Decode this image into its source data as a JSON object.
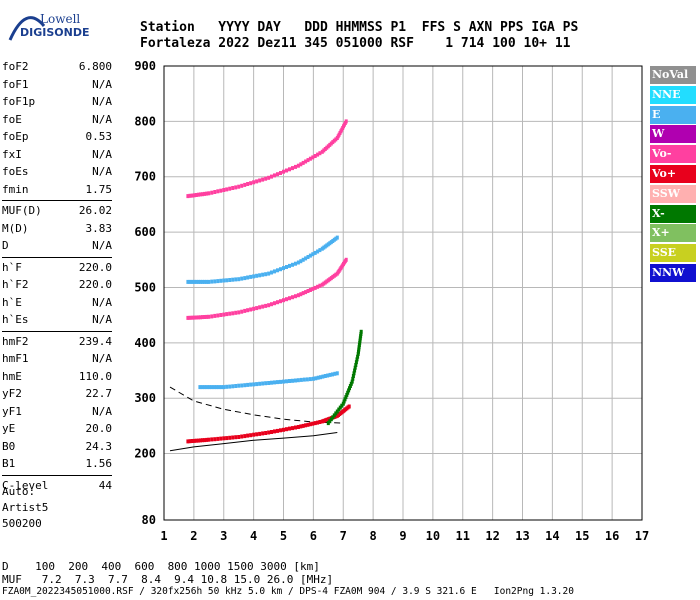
{
  "logo": {
    "line1": "Lowell",
    "line2": "DIGISONDE"
  },
  "header": {
    "row1": "Station   YYYY DAY   DDD HHMMSS P1  FFS S AXN PPS IGA PS",
    "row2": "Fortaleza 2022 Dez11 345 051000 RSF    1 714 100 10+ 11"
  },
  "params": {
    "group1": [
      {
        "label": "foF2",
        "value": "6.800"
      },
      {
        "label": "foF1",
        "value": "N/A"
      },
      {
        "label": "foF1p",
        "value": "N/A"
      },
      {
        "label": "foE",
        "value": "N/A"
      },
      {
        "label": "foEp",
        "value": "0.53"
      },
      {
        "label": "fxI",
        "value": "N/A"
      },
      {
        "label": "foEs",
        "value": "N/A"
      },
      {
        "label": "fmin",
        "value": "1.75"
      }
    ],
    "group2": [
      {
        "label": "MUF(D)",
        "value": "26.02"
      },
      {
        "label": "M(D)",
        "value": "3.83"
      },
      {
        "label": "D",
        "value": "N/A"
      }
    ],
    "group3": [
      {
        "label": "h`F",
        "value": "220.0"
      },
      {
        "label": "h`F2",
        "value": "220.0"
      },
      {
        "label": "h`E",
        "value": "N/A"
      },
      {
        "label": "h`Es",
        "value": "N/A"
      }
    ],
    "group4": [
      {
        "label": "hmF2",
        "value": "239.4"
      },
      {
        "label": "hmF1",
        "value": "N/A"
      },
      {
        "label": "hmE",
        "value": "110.0"
      },
      {
        "label": "yF2",
        "value": "22.7"
      },
      {
        "label": "yF1",
        "value": "N/A"
      },
      {
        "label": "yE",
        "value": "20.0"
      },
      {
        "label": "B0",
        "value": "24.3"
      },
      {
        "label": "B1",
        "value": "1.56"
      }
    ],
    "group5": [
      {
        "label": "C-level",
        "value": "44"
      }
    ]
  },
  "auto": {
    "line1": "Auto:",
    "line2": "Artist5",
    "line3": "500200"
  },
  "legend": [
    {
      "label": "NoVal",
      "color": "#909090"
    },
    {
      "label": "NNE",
      "color": "#22ddff"
    },
    {
      "label": "E",
      "color": "#4ab0f0"
    },
    {
      "label": "W",
      "color": "#b000b0"
    },
    {
      "label": "Vo-",
      "color": "#ff40a0"
    },
    {
      "label": "Vo+",
      "color": "#e8001c"
    },
    {
      "label": "SSW",
      "color": "#ffb0b0"
    },
    {
      "label": "X-",
      "color": "#007800"
    },
    {
      "label": "X+",
      "color": "#80c060"
    },
    {
      "label": "SSE",
      "color": "#c8d020"
    },
    {
      "label": "NNW",
      "color": "#1010d0"
    }
  ],
  "footer": {
    "row1": "D    100  200  400  600  800 1000 1500 3000 [km]",
    "row2": "MUF   7.2  7.3  7.7  8.4  9.4 10.8 15.0 26.0 [MHz]",
    "filename": "FZA0M_2022345051000.RSF / 320fx256h 50 kHz 5.0 km / DPS-4 FZA0M 904 / 3.9 S 321.6 E   Ion2Png 1.3.20"
  },
  "chart_data": {
    "type": "scatter",
    "xlim": [
      1,
      17
    ],
    "ylim": [
      80,
      900
    ],
    "x_ticks": [
      "1",
      "2",
      "3",
      "4",
      "5",
      "6",
      "7",
      "8",
      "9",
      "10",
      "11",
      "12",
      "13",
      "14",
      "15",
      "16",
      "17"
    ],
    "y_ticks": [
      "80",
      "200",
      "300",
      "400",
      "500",
      "600",
      "700",
      "800",
      "900"
    ],
    "grid": true,
    "traces": [
      {
        "name": "Vo+",
        "color": "#e8001c",
        "points": [
          [
            1.8,
            222
          ],
          [
            2.5,
            225
          ],
          [
            3.5,
            230
          ],
          [
            4.5,
            238
          ],
          [
            5.5,
            248
          ],
          [
            6.3,
            258
          ],
          [
            6.8,
            268
          ],
          [
            7.2,
            285
          ]
        ]
      },
      {
        "name": "Vo-",
        "color": "#ff40a0",
        "points": [
          [
            1.8,
            445
          ],
          [
            2.5,
            447
          ],
          [
            3.5,
            455
          ],
          [
            4.5,
            468
          ],
          [
            5.5,
            486
          ],
          [
            6.3,
            505
          ],
          [
            6.8,
            525
          ],
          [
            7.1,
            550
          ]
        ]
      },
      {
        "name": "Vo-",
        "color": "#ff40a0",
        "points": [
          [
            1.8,
            665
          ],
          [
            2.5,
            670
          ],
          [
            3.5,
            682
          ],
          [
            4.5,
            698
          ],
          [
            5.5,
            720
          ],
          [
            6.3,
            745
          ],
          [
            6.8,
            770
          ],
          [
            7.1,
            800
          ]
        ]
      },
      {
        "name": "E",
        "color": "#4ab0f0",
        "points": [
          [
            1.8,
            510
          ],
          [
            2.5,
            510
          ],
          [
            3.5,
            515
          ],
          [
            4.5,
            525
          ],
          [
            5.5,
            545
          ],
          [
            6.3,
            570
          ],
          [
            6.8,
            590
          ]
        ]
      },
      {
        "name": "E",
        "color": "#4ab0f0",
        "points": [
          [
            2.2,
            320
          ],
          [
            3,
            320
          ],
          [
            4,
            325
          ],
          [
            5,
            330
          ],
          [
            6,
            335
          ],
          [
            6.8,
            345
          ]
        ]
      },
      {
        "name": "X-",
        "color": "#007800",
        "points": [
          [
            6.5,
            255
          ],
          [
            7,
            290
          ],
          [
            7.3,
            330
          ],
          [
            7.5,
            380
          ],
          [
            7.6,
            420
          ]
        ]
      }
    ],
    "model_curve_solid": [
      [
        1.2,
        205
      ],
      [
        2,
        212
      ],
      [
        3,
        218
      ],
      [
        4,
        224
      ],
      [
        5,
        228
      ],
      [
        6,
        232
      ],
      [
        6.8,
        238
      ]
    ],
    "model_curve_dashed": [
      [
        1.2,
        320
      ],
      [
        2,
        295
      ],
      [
        3,
        280
      ],
      [
        4,
        270
      ],
      [
        5,
        262
      ],
      [
        6,
        257
      ],
      [
        7,
        255
      ]
    ]
  }
}
